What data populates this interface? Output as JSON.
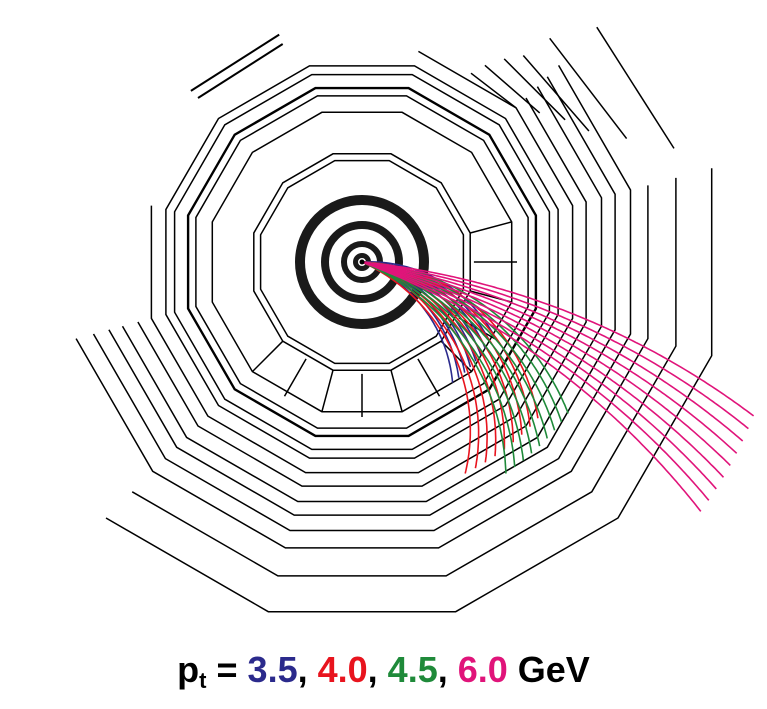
{
  "figure": {
    "caption": {
      "symbol": "p",
      "subscript": "t",
      "equals": " =",
      "separator": ", ",
      "unit": " GeV"
    },
    "momenta": [
      {
        "label": "3.5",
        "color": "#2b2a8c",
        "curvature": 1.75,
        "spread": [
          -0.06,
          0.36
        ]
      },
      {
        "label": "4.0",
        "color": "#e8141e",
        "curvature": 1.35,
        "spread": [
          0.03,
          0.42
        ]
      },
      {
        "label": "4.5",
        "color": "#1f8a3a",
        "curvature": 1.05,
        "spread": [
          0.06,
          0.4
        ]
      },
      {
        "label": "6.0",
        "color": "#e0147a",
        "curvature": 0.32,
        "spread": [
          0.1,
          0.36
        ]
      }
    ],
    "tracks_per_momentum": 9,
    "colors": {
      "detector_lines": "#000000",
      "background": "#ffffff"
    }
  }
}
